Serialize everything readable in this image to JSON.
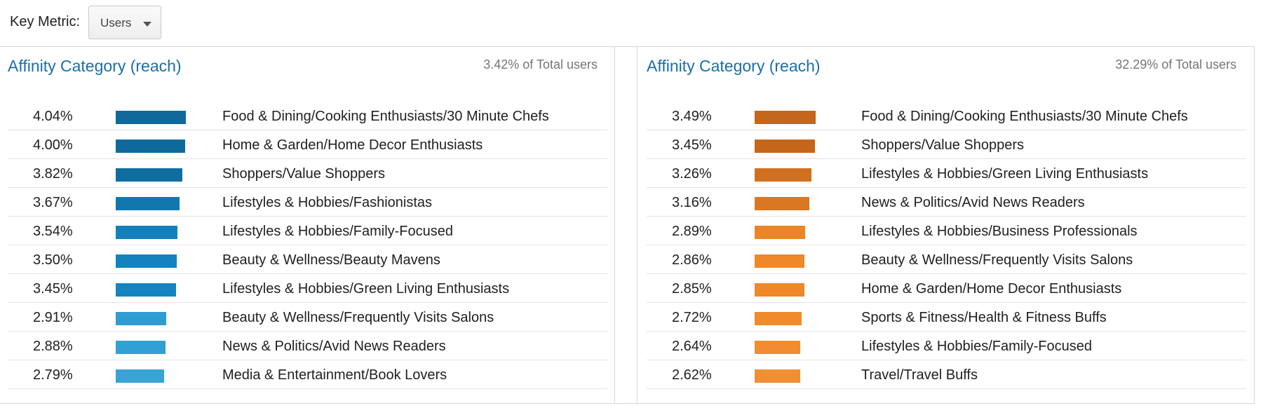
{
  "key_metric": {
    "label": "Key Metric:",
    "selected": "Users"
  },
  "chart_data": [
    {
      "type": "bar",
      "orientation": "horizontal",
      "title": "Affinity Category (reach)",
      "summary": "3.42% of Total users",
      "value_suffix": "%",
      "categories": [
        "Food & Dining/Cooking Enthusiasts/30 Minute Chefs",
        "Home & Garden/Home Decor Enthusiasts",
        "Shoppers/Value Shoppers",
        "Lifestyles & Hobbies/Fashionistas",
        "Lifestyles & Hobbies/Family-Focused",
        "Beauty & Wellness/Beauty Mavens",
        "Lifestyles & Hobbies/Green Living Enthusiasts",
        "Beauty & Wellness/Frequently Visits Salons",
        "News & Politics/Avid News Readers",
        "Media & Entertainment/Book Lovers"
      ],
      "values": [
        4.04,
        4.0,
        3.82,
        3.67,
        3.54,
        3.5,
        3.45,
        2.91,
        2.88,
        2.79
      ],
      "colors": [
        "#0f6a9b",
        "#0f6a9b",
        "#0f6d9f",
        "#1178ae",
        "#1380bb",
        "#1382bd",
        "#1584c0",
        "#2f9dd1",
        "#33a0d3",
        "#38a3d5"
      ]
    },
    {
      "type": "bar",
      "orientation": "horizontal",
      "title": "Affinity Category (reach)",
      "summary": "32.29% of Total users",
      "value_suffix": "%",
      "categories": [
        "Food & Dining/Cooking Enthusiasts/30 Minute Chefs",
        "Shoppers/Value Shoppers",
        "Lifestyles & Hobbies/Green Living Enthusiasts",
        "News & Politics/Avid News Readers",
        "Lifestyles & Hobbies/Business Professionals",
        "Beauty & Wellness/Frequently Visits Salons",
        "Home & Garden/Home Decor Enthusiasts",
        "Sports & Fitness/Health & Fitness Buffs",
        "Lifestyles & Hobbies/Family-Focused",
        "Travel/Travel Buffs"
      ],
      "values": [
        3.49,
        3.45,
        3.26,
        3.16,
        2.89,
        2.86,
        2.85,
        2.72,
        2.64,
        2.62
      ],
      "colors": [
        "#c4661c",
        "#c4661c",
        "#d0701f",
        "#d97723",
        "#eb8526",
        "#ee8828",
        "#ee8828",
        "#f08b2c",
        "#f08d30",
        "#f08f34"
      ]
    }
  ]
}
